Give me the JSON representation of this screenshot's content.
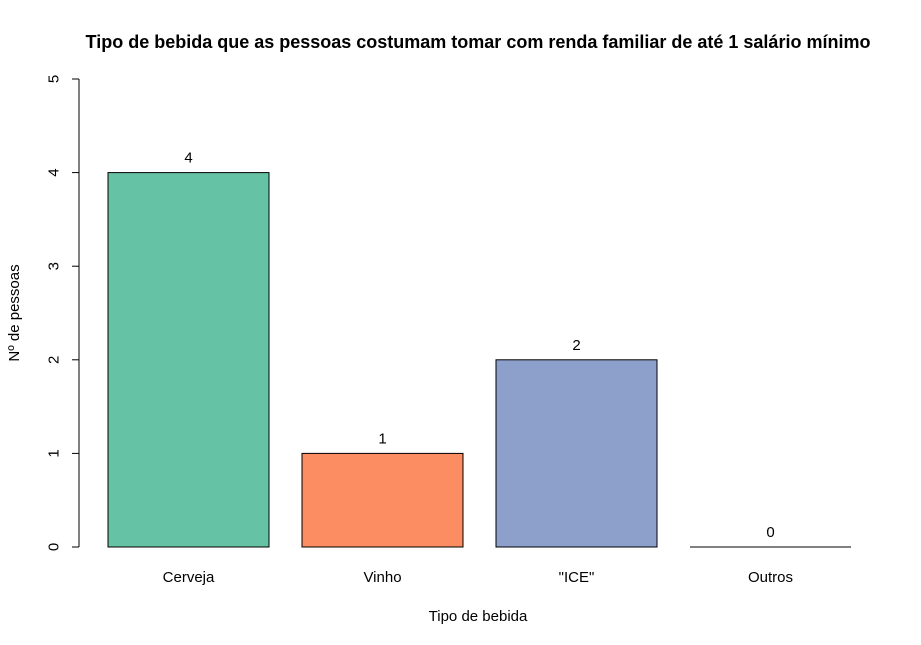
{
  "chart_data": {
    "type": "bar",
    "title": "Tipo de bebida que as pessoas costumam tomar com renda familiar de até 1 salário mínimo",
    "xlabel": "Tipo de bebida",
    "ylabel": "Nº de pessoas",
    "categories": [
      "Cerveja",
      "Vinho",
      "\"ICE\"",
      "Outros"
    ],
    "values": [
      4,
      1,
      2,
      0
    ],
    "data_labels": [
      "4",
      "1",
      "2",
      "0"
    ],
    "colors": [
      "#66c2a5",
      "#fc8d62",
      "#8da0cb",
      "#e78ac3"
    ],
    "ylim": [
      0,
      5
    ],
    "yticks": [
      0,
      1,
      2,
      3,
      4,
      5
    ],
    "ytick_labels": [
      "0",
      "1",
      "2",
      "3",
      "4",
      "5"
    ],
    "grid": false,
    "legend": "none"
  }
}
